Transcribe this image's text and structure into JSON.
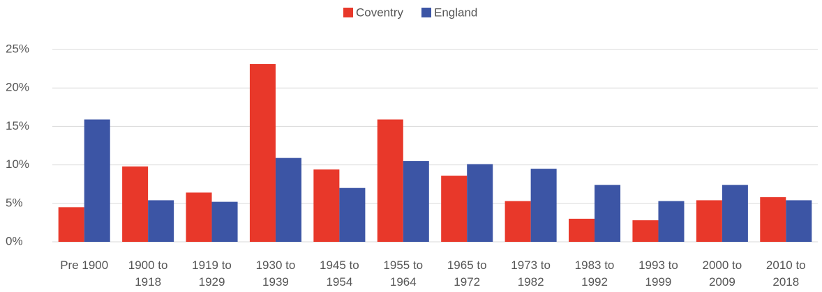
{
  "chart_data": {
    "type": "bar",
    "categories": [
      "Pre 1900",
      "1900 to 1918",
      "1919 to 1929",
      "1930 to 1939",
      "1945 to 1954",
      "1955 to 1964",
      "1965 to 1972",
      "1973 to 1982",
      "1983 to 1992",
      "1993 to 1999",
      "2000 to 2009",
      "2010 to 2018"
    ],
    "series": [
      {
        "name": "Coventry",
        "color": "#e8382a",
        "values": [
          4.5,
          9.8,
          6.4,
          23.1,
          9.4,
          15.9,
          8.6,
          5.3,
          3.0,
          2.8,
          5.4,
          5.8
        ]
      },
      {
        "name": "England",
        "color": "#3c55a5",
        "values": [
          15.9,
          5.4,
          5.2,
          10.9,
          7.0,
          10.5,
          10.1,
          9.5,
          7.4,
          5.3,
          7.4,
          5.4
        ]
      }
    ],
    "ylim": [
      0,
      25
    ],
    "yticks": [
      {
        "value": 0,
        "label": "0%"
      },
      {
        "value": 5,
        "label": "5%"
      },
      {
        "value": 10,
        "label": "10%"
      },
      {
        "value": 15,
        "label": "15%"
      },
      {
        "value": 20,
        "label": "20%"
      },
      {
        "value": 25,
        "label": "25%"
      }
    ],
    "grid": true,
    "legend": "top"
  }
}
